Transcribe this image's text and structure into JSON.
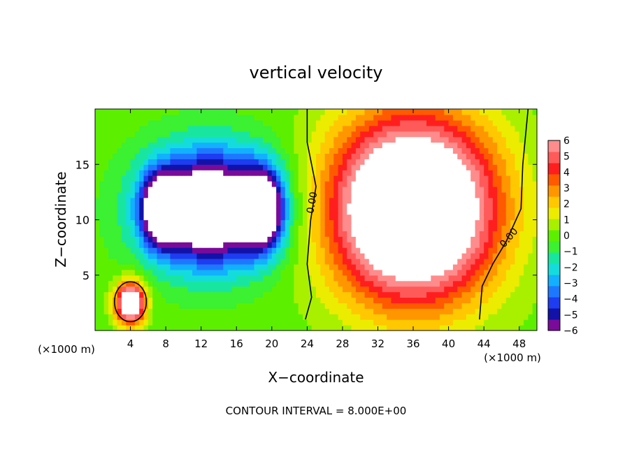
{
  "chart_data": {
    "type": "heatmap",
    "title": "vertical velocity",
    "xlabel": "X−coordinate",
    "ylabel": "Z−coordinate",
    "x_unit_left": "(×1000 m)",
    "x_unit_right": "(×1000 m)",
    "footer": "CONTOUR INTERVAL = 8.000E+00",
    "xlim": [
      0,
      50
    ],
    "ylim": [
      0,
      20
    ],
    "x_ticks": [
      4,
      8,
      12,
      16,
      20,
      24,
      28,
      32,
      36,
      40,
      44,
      48
    ],
    "y_ticks": [
      5,
      10,
      15
    ],
    "colorbar": {
      "min": -6,
      "max": 6,
      "ticks": [
        "6",
        "5",
        "4",
        "3",
        "2",
        "1",
        "0",
        "−1",
        "−2",
        "−3",
        "−4",
        "−5",
        "−6"
      ],
      "colors": [
        "#7a0a9a",
        "#1212a8",
        "#1e3cf0",
        "#1e78ff",
        "#12b0ff",
        "#14dcdc",
        "#18e6a0",
        "#3cf032",
        "#5cf000",
        "#a8f000",
        "#ecec00",
        "#ffc800",
        "#ff9600",
        "#ff5a00",
        "#ff1e1e",
        "#ff5a5a",
        "#ff8c8c"
      ]
    },
    "contour_labels": [
      "0.00",
      "0.00"
    ],
    "regions": [
      {
        "kind": "updraft",
        "x": 36,
        "z": 11,
        "rx": 9,
        "rz": 8,
        "peak": 12
      },
      {
        "kind": "updraft",
        "x": 4,
        "z": 2.5,
        "rx": 1.6,
        "rz": 1.8,
        "peak": 10
      },
      {
        "kind": "downdraft",
        "x": 13,
        "z": 11,
        "rx": 7,
        "rz": 5,
        "peak": -10
      },
      {
        "kind": "downdraft",
        "x": 19,
        "z": 11,
        "rx": 2.2,
        "rz": 3.5,
        "peak": -7
      },
      {
        "kind": "downdraft",
        "x": 7.5,
        "z": 11,
        "rx": 2.0,
        "rz": 3.0,
        "peak": -7
      }
    ]
  }
}
